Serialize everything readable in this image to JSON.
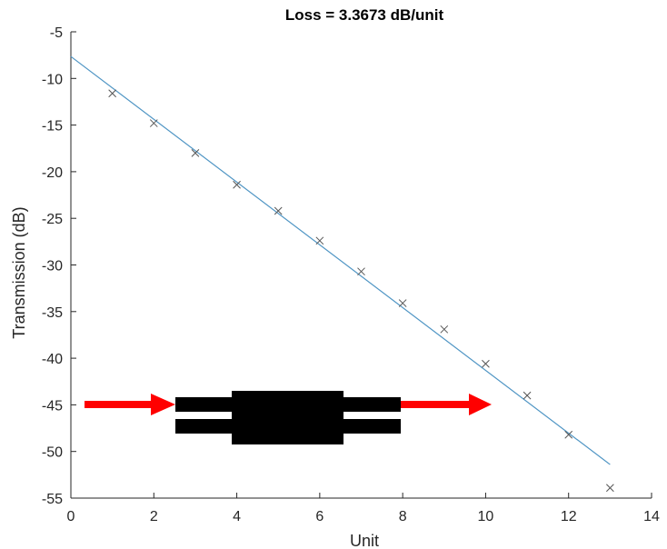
{
  "chart_data": {
    "type": "scatter",
    "title": "Loss = 3.3673 dB/unit",
    "xlabel": "Unit",
    "ylabel": "Transmission (dB)",
    "xlim": [
      0,
      14
    ],
    "ylim": [
      -55,
      -5
    ],
    "x_ticks": [
      "0",
      "2",
      "4",
      "6",
      "8",
      "10",
      "12",
      "14"
    ],
    "y_ticks": [
      "-5",
      "-10",
      "-15",
      "-20",
      "-25",
      "-30",
      "-35",
      "-40",
      "-45",
      "-50",
      "-55"
    ],
    "grid": false,
    "legend": "none",
    "series": [
      {
        "marker": "x",
        "color": "#555555",
        "x": [
          1,
          2,
          3,
          4,
          5,
          6,
          7,
          8,
          9,
          10,
          11,
          12,
          13
        ],
        "y": [
          -11.6,
          -14.8,
          -18.0,
          -21.4,
          -24.2,
          -27.4,
          -30.7,
          -34.1,
          -36.9,
          -40.6,
          -44.0,
          -48.2,
          -53.9
        ]
      },
      {
        "kind": "fit-line",
        "color": "#4f95c4",
        "x": [
          0,
          13
        ],
        "y": [
          -7.65,
          -51.4
        ]
      }
    ],
    "annotations": [
      {
        "kind": "waveguide-device-schematic",
        "color": "#000000",
        "arrow_color": "#ff0000"
      }
    ]
  }
}
